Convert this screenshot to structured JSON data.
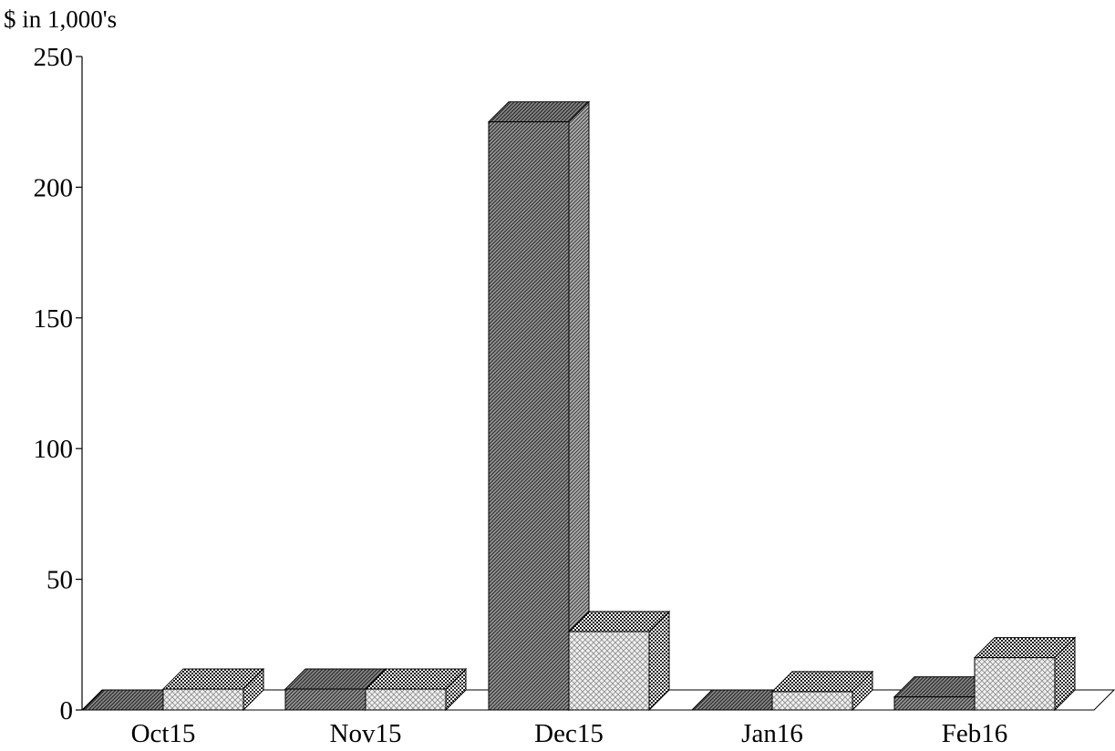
{
  "chart_data": {
    "type": "bar",
    "unit_label": "$ in 1,000's",
    "categories": [
      "Oct15",
      "Nov15",
      "Dec15",
      "Jan16",
      "Feb16"
    ],
    "series": [
      {
        "values": [
          0,
          8,
          225,
          0,
          5
        ],
        "pattern": "dark-diagonal"
      },
      {
        "values": [
          8,
          8,
          30,
          7,
          20
        ],
        "pattern": "light-crosshatch"
      }
    ],
    "ylim": [
      0,
      250
    ],
    "yticks": [
      0,
      50,
      100,
      150,
      200,
      250
    ],
    "grid": false,
    "legend": "none",
    "colors": {
      "ink": "#000000",
      "dark_fill": "#7a7a7a",
      "light_fill": "#e6e6e6"
    }
  }
}
